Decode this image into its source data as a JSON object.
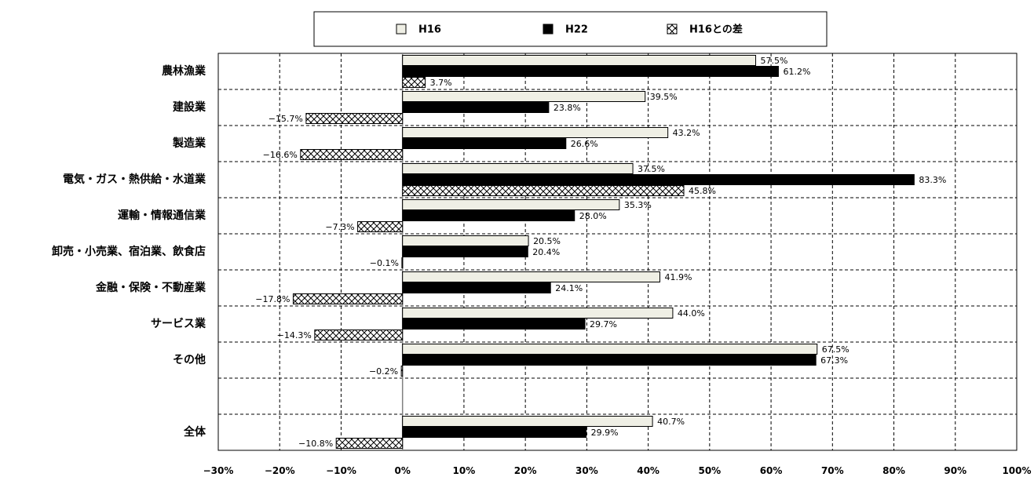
{
  "chart_data": {
    "type": "bar",
    "orientation": "horizontal",
    "categories": [
      "農林漁業",
      "建設業",
      "製造業",
      "電気・ガス・熱供給・水道業",
      "運輸・情報通信業",
      "卸売・小売業、宿泊業、飲食店",
      "金融・保険・不動産業",
      "サービス業",
      "その他",
      "",
      "全体"
    ],
    "series": [
      {
        "name": "H16",
        "values": [
          57.5,
          39.5,
          43.2,
          37.5,
          35.3,
          20.5,
          41.9,
          44.0,
          67.5,
          null,
          40.7
        ],
        "labels": [
          "57.5%",
          "39.5%",
          "43.2%",
          "37.5%",
          "35.3%",
          "20.5%",
          "41.9%",
          "44.0%",
          "67.5%",
          "",
          "40.7%"
        ],
        "fill": "#efefe5"
      },
      {
        "name": "H22",
        "values": [
          61.2,
          23.8,
          26.6,
          83.3,
          28.0,
          20.4,
          24.1,
          29.7,
          67.3,
          null,
          29.9
        ],
        "labels": [
          "61.2%",
          "23.8%",
          "26.6%",
          "83.3%",
          "28.0%",
          "20.4%",
          "24.1%",
          "29.7%",
          "67.3%",
          "",
          "29.9%"
        ],
        "fill": "#000000"
      },
      {
        "name": "H16との差",
        "values": [
          3.7,
          -15.7,
          -16.6,
          45.8,
          -7.3,
          -0.1,
          -17.8,
          -14.3,
          -0.2,
          null,
          -10.8
        ],
        "labels": [
          "3.7%",
          "−15.7%",
          "−16.6%",
          "45.8%",
          "−7.3%",
          "−0.1%",
          "−17.8%",
          "−14.3%",
          "−0.2%",
          "",
          "−10.8%"
        ],
        "fill": "crosshatch"
      }
    ],
    "xlim": [
      -30,
      100
    ],
    "xticks": [
      -30,
      -20,
      -10,
      0,
      10,
      20,
      30,
      40,
      50,
      60,
      70,
      80,
      90,
      100
    ],
    "xtick_labels": [
      "−30%",
      "−20%",
      "−10%",
      "0%",
      "10%",
      "20%",
      "30%",
      "40%",
      "50%",
      "60%",
      "70%",
      "80%",
      "90%",
      "100%"
    ],
    "grid": true,
    "legend_position": "top-center"
  }
}
